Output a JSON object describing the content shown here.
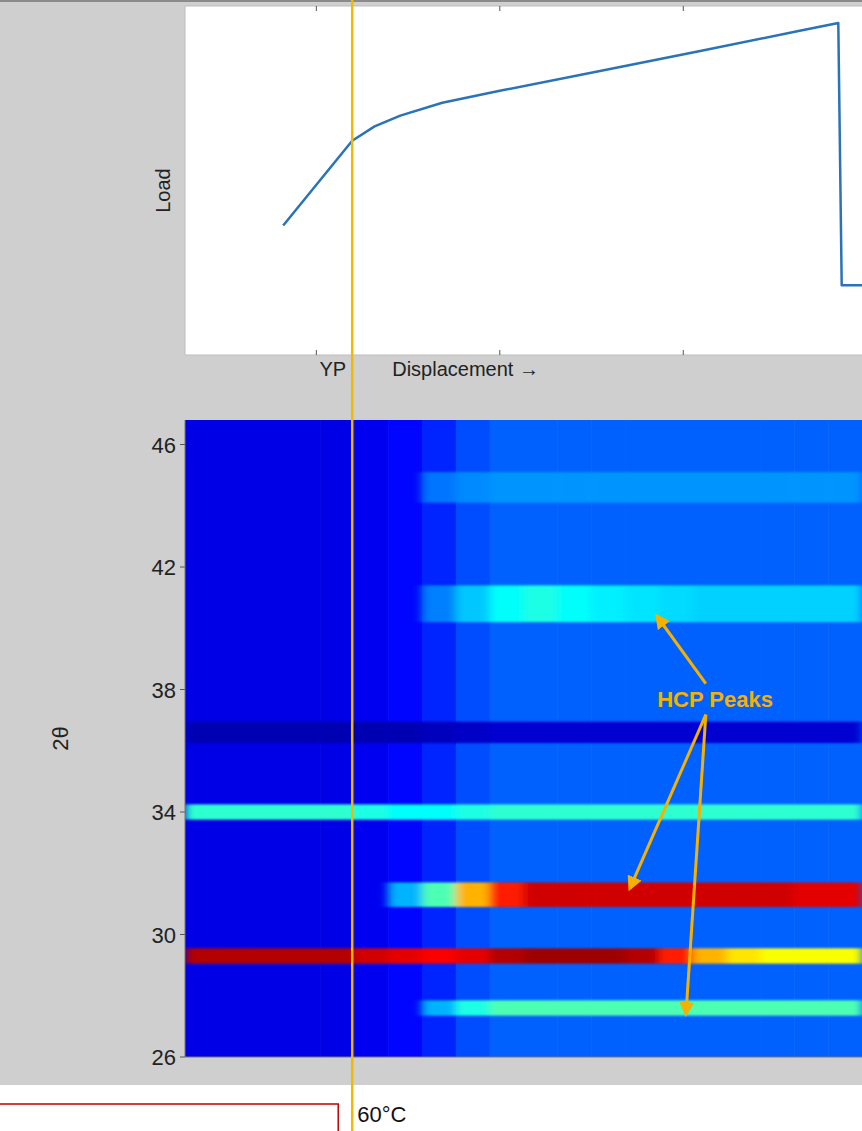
{
  "chart_data": [
    {
      "type": "line",
      "ylabel": "Load",
      "xlabel": "Displacement →",
      "x": [
        14.5,
        24.7,
        28.0,
        31.8,
        38.0,
        46.5,
        61.3,
        76.1,
        90.8,
        96.5,
        97.0,
        100
      ],
      "values": [
        37.1,
        61.4,
        65.5,
        68.6,
        72.3,
        75.7,
        81.4,
        87.1,
        92.9,
        95.1,
        20,
        20
      ],
      "color": "#2a73b8",
      "xlim": [
        0,
        100
      ],
      "ylim": [
        0,
        100
      ],
      "xticks": [
        19.4,
        46.5,
        73.6
      ],
      "tick_labels": false,
      "annotations": [
        {
          "text": "YP",
          "x": 24.7
        }
      ]
    },
    {
      "type": "heatmap",
      "title": "60°C",
      "ylabel": "2θ",
      "xlim": [
        0,
        100
      ],
      "ylim": [
        26,
        46.8
      ],
      "yticks": [
        26,
        30,
        34,
        38,
        42,
        46
      ],
      "zlim": [
        0,
        1
      ],
      "x_bins": [
        0,
        5,
        10,
        15,
        20,
        25,
        30,
        35,
        40,
        45,
        50,
        55,
        60,
        65,
        70,
        75,
        80,
        85,
        90,
        95,
        100
      ],
      "background": [
        0.1,
        0.1,
        0.1,
        0.1,
        0.1,
        0.11,
        0.13,
        0.16,
        0.2,
        0.22,
        0.22,
        0.22,
        0.22,
        0.22,
        0.22,
        0.22,
        0.22,
        0.22,
        0.22,
        0.22
      ],
      "bands": [
        {
          "two_theta": 36.6,
          "width": 0.7,
          "values": [
            0.05,
            0.05,
            0.05,
            0.05,
            0.05,
            0.05,
            0.05,
            0.06,
            0.07,
            0.08,
            0.08,
            0.08,
            0.08,
            0.08,
            0.08,
            0.08,
            0.08,
            0.08,
            0.08,
            0.08
          ]
        },
        {
          "two_theta": 34.0,
          "width": 0.5,
          "values": [
            0.42,
            0.42,
            0.42,
            0.42,
            0.42,
            0.4,
            0.38,
            0.38,
            0.4,
            0.42,
            0.42,
            0.42,
            0.42,
            0.42,
            0.42,
            0.42,
            0.42,
            0.42,
            0.42,
            0.42
          ]
        },
        {
          "two_theta": 29.3,
          "width": 0.5,
          "values": [
            0.95,
            0.95,
            0.95,
            0.95,
            0.95,
            0.92,
            0.9,
            0.88,
            0.9,
            0.95,
            0.97,
            0.97,
            0.97,
            0.95,
            0.85,
            0.7,
            0.65,
            0.62,
            0.62,
            0.62
          ]
        },
        {
          "two_theta": 31.3,
          "width": 0.8,
          "values": [
            null,
            null,
            null,
            null,
            null,
            null,
            0.3,
            0.45,
            0.7,
            0.85,
            0.92,
            0.92,
            0.92,
            0.92,
            0.92,
            0.92,
            0.92,
            0.92,
            0.9,
            0.9
          ]
        },
        {
          "two_theta": 27.6,
          "width": 0.5,
          "values": [
            null,
            null,
            null,
            null,
            null,
            null,
            null,
            0.3,
            0.4,
            0.45,
            0.45,
            0.45,
            0.45,
            0.45,
            0.45,
            0.45,
            0.45,
            0.45,
            0.45,
            0.45
          ]
        },
        {
          "two_theta": 40.8,
          "width": 1.2,
          "values": [
            null,
            null,
            null,
            null,
            null,
            null,
            null,
            0.25,
            0.32,
            0.38,
            0.4,
            0.38,
            0.36,
            0.35,
            0.34,
            0.33,
            0.33,
            0.33,
            0.33,
            0.33
          ]
        },
        {
          "two_theta": 44.6,
          "width": 1.0,
          "values": [
            null,
            null,
            null,
            null,
            null,
            null,
            null,
            0.24,
            0.26,
            0.27,
            0.27,
            0.27,
            0.27,
            0.27,
            0.27,
            0.27,
            0.27,
            0.27,
            0.27,
            0.27
          ]
        }
      ],
      "annotations": [
        {
          "text": "HCP Peaks",
          "x": 78.3,
          "y": 37.7,
          "arrows": [
            {
              "x": 69.7,
              "y": 40.4
            },
            {
              "x": 65.7,
              "y": 31.5
            },
            {
              "x": 74.0,
              "y": 27.4
            }
          ]
        }
      ]
    }
  ]
}
